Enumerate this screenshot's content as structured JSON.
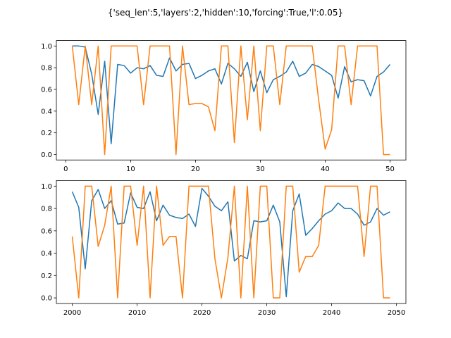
{
  "figure": {
    "suptitle": "{'seq_len':5,'layers':2,'hidden':10,'forcing':True,'l':0.05}"
  },
  "chart_data": [
    {
      "type": "line",
      "xlim": [
        -1.45,
        52.45
      ],
      "ylim": [
        -0.05,
        1.05
      ],
      "xticks": [
        0,
        10,
        20,
        30,
        40,
        50
      ],
      "xtick_labels": [
        "0",
        "10",
        "20",
        "30",
        "40",
        "50"
      ],
      "yticks": [
        0.0,
        0.2,
        0.4,
        0.6,
        0.8,
        1.0
      ],
      "ytick_labels": [
        "0.0",
        "0.2",
        "0.4",
        "0.6",
        "0.8",
        "1.0"
      ],
      "grid": false,
      "x": [
        1,
        2,
        3,
        4,
        5,
        6,
        7,
        8,
        9,
        10,
        11,
        12,
        13,
        14,
        15,
        16,
        17,
        18,
        19,
        20,
        21,
        22,
        23,
        24,
        25,
        26,
        27,
        28,
        29,
        30,
        31,
        32,
        33,
        34,
        35,
        36,
        37,
        38,
        39,
        40,
        41,
        42,
        43,
        44,
        45,
        46,
        47,
        48,
        49,
        50
      ],
      "series": [
        {
          "color": "#1f77b4",
          "values": [
            1.0,
            1.0,
            0.99,
            0.74,
            0.37,
            0.86,
            0.1,
            0.83,
            0.82,
            0.75,
            0.8,
            0.79,
            0.82,
            0.73,
            0.72,
            0.89,
            0.77,
            0.83,
            0.84,
            0.7,
            0.73,
            0.77,
            0.79,
            0.65,
            0.84,
            0.79,
            0.72,
            0.85,
            0.58,
            0.77,
            0.57,
            0.69,
            0.72,
            0.76,
            0.86,
            0.72,
            0.75,
            0.83,
            0.81,
            0.77,
            0.73,
            0.52,
            0.81,
            0.67,
            0.69,
            0.68,
            0.54,
            0.72,
            0.76,
            0.83
          ]
        },
        {
          "color": "#ff7f0e",
          "values": [
            1.0,
            0.46,
            1.0,
            0.46,
            1.0,
            0.0,
            1.0,
            1.0,
            1.0,
            1.0,
            1.0,
            0.46,
            1.0,
            1.0,
            1.0,
            1.0,
            0.0,
            1.0,
            0.46,
            0.47,
            0.47,
            0.44,
            0.22,
            1.0,
            1.0,
            0.11,
            1.0,
            0.32,
            1.0,
            0.22,
            1.0,
            1.0,
            0.46,
            1.0,
            1.0,
            1.0,
            1.0,
            1.0,
            0.5,
            0.05,
            0.23,
            1.0,
            1.0,
            0.46,
            1.0,
            1.0,
            1.0,
            1.0,
            0.0,
            0.0
          ]
        }
      ]
    },
    {
      "type": "line",
      "xlim": [
        1997.55,
        2051.45
      ],
      "ylim": [
        -0.05,
        1.05
      ],
      "xticks": [
        2000,
        2010,
        2020,
        2030,
        2040,
        2050
      ],
      "xtick_labels": [
        "2000",
        "2010",
        "2020",
        "2030",
        "2040",
        "2050"
      ],
      "yticks": [
        0.0,
        0.2,
        0.4,
        0.6,
        0.8,
        1.0
      ],
      "ytick_labels": [
        "0.0",
        "0.2",
        "0.4",
        "0.6",
        "0.8",
        "1.0"
      ],
      "grid": false,
      "x": [
        2000,
        2001,
        2002,
        2003,
        2004,
        2005,
        2006,
        2007,
        2008,
        2009,
        2010,
        2011,
        2012,
        2013,
        2014,
        2015,
        2016,
        2017,
        2018,
        2019,
        2020,
        2021,
        2022,
        2023,
        2024,
        2025,
        2026,
        2027,
        2028,
        2029,
        2030,
        2031,
        2032,
        2033,
        2034,
        2035,
        2036,
        2037,
        2038,
        2039,
        2040,
        2041,
        2042,
        2043,
        2044,
        2045,
        2046,
        2047,
        2048,
        2049
      ],
      "series": [
        {
          "color": "#1f77b4",
          "values": [
            0.95,
            0.81,
            0.26,
            0.87,
            0.97,
            0.8,
            0.87,
            0.66,
            0.67,
            0.94,
            0.81,
            0.8,
            0.95,
            0.69,
            0.83,
            0.74,
            0.72,
            0.71,
            0.75,
            0.64,
            0.98,
            0.91,
            0.82,
            0.78,
            0.86,
            0.33,
            0.38,
            0.35,
            0.69,
            0.68,
            0.69,
            0.83,
            0.68,
            0.01,
            0.78,
            0.93,
            0.56,
            0.62,
            0.69,
            0.75,
            0.78,
            0.85,
            0.8,
            0.8,
            0.75,
            0.65,
            0.68,
            0.8,
            0.74,
            0.77
          ]
        },
        {
          "color": "#ff7f0e",
          "values": [
            0.55,
            0.0,
            1.0,
            1.0,
            0.46,
            0.65,
            1.0,
            0.0,
            1.0,
            1.0,
            0.47,
            1.0,
            0.0,
            1.0,
            0.47,
            0.55,
            0.55,
            0.0,
            1.0,
            1.0,
            1.0,
            1.0,
            0.35,
            0.0,
            0.36,
            1.0,
            0.0,
            1.0,
            0.0,
            1.0,
            1.0,
            0.0,
            0.0,
            1.0,
            1.0,
            0.23,
            0.37,
            0.37,
            0.47,
            1.0,
            1.0,
            1.0,
            1.0,
            1.0,
            1.0,
            0.37,
            1.0,
            1.0,
            0.0,
            0.0
          ]
        }
      ]
    }
  ]
}
